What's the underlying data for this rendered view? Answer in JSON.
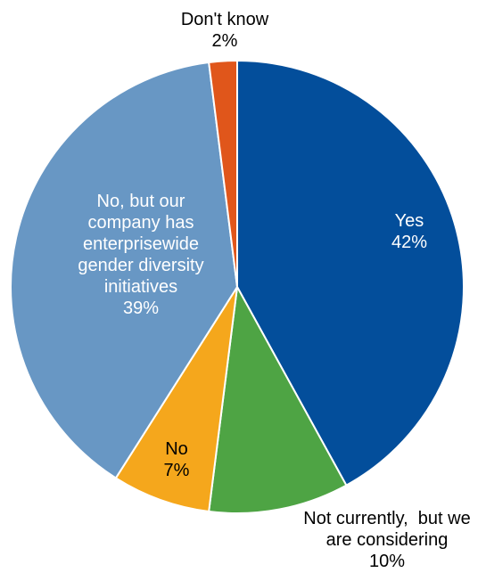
{
  "chart_data": {
    "type": "pie",
    "title": "",
    "start_angle_deg": 0,
    "direction": "clockwise",
    "slices": [
      {
        "key": "yes",
        "lines": [
          "Yes"
        ],
        "value": 42,
        "pct_label": "42%",
        "color": "#034e9b",
        "text_color": "#ffffff"
      },
      {
        "key": "not-currently",
        "lines": [
          "Not currently,  but we",
          "are considering"
        ],
        "value": 10,
        "pct_label": "10%",
        "color": "#4ea444",
        "text_color": "#000000"
      },
      {
        "key": "no",
        "lines": [
          "No"
        ],
        "value": 7,
        "pct_label": "7%",
        "color": "#f5a71c",
        "text_color": "#000000"
      },
      {
        "key": "no-but",
        "lines": [
          "No, but our",
          "company has",
          "enterprisewide",
          "gender diversity",
          "initiatives"
        ],
        "value": 39,
        "pct_label": "39%",
        "color": "#6897c4",
        "text_color": "#ffffff"
      },
      {
        "key": "dont-know",
        "lines": [
          "Don't know"
        ],
        "value": 2,
        "pct_label": "2%",
        "color": "#e0561b",
        "text_color": "#000000"
      }
    ]
  }
}
